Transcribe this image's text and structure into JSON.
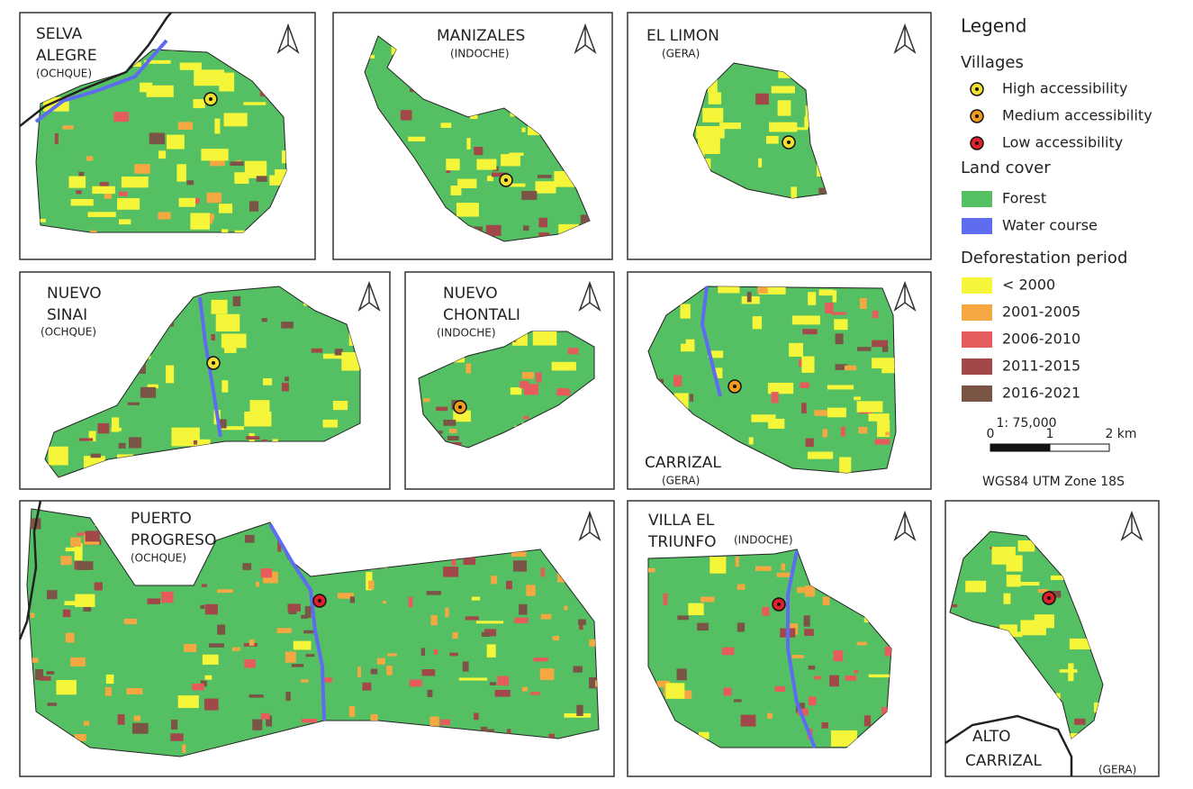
{
  "panels": [
    {
      "name": [
        "SELVA",
        "ALEGRE"
      ],
      "group": "(OCHQUE)"
    },
    {
      "name": [
        "MANIZALES"
      ],
      "group": "(INDOCHE)"
    },
    {
      "name": [
        "EL LIMON"
      ],
      "group": "(GERA)"
    },
    {
      "name": [
        "NUEVO",
        "SINAI"
      ],
      "group": "(OCHQUE)"
    },
    {
      "name": [
        "NUEVO",
        "CHONTALI"
      ],
      "group": "(INDOCHE)"
    },
    {
      "name": [
        "CARRIZAL"
      ],
      "group": "(GERA)"
    },
    {
      "name": [
        "PUERTO",
        "PROGRESO"
      ],
      "group": "(OCHQUE)"
    },
    {
      "name": [
        "VILLA EL",
        "TRIUNFO"
      ],
      "group": "(INDOCHE)"
    },
    {
      "name": [
        "ALTO",
        "CARRIZAL"
      ],
      "group": "(GERA)"
    }
  ],
  "legend": {
    "title": "Legend",
    "villages": {
      "title": "Villages",
      "items": [
        {
          "label": "High accessibility",
          "color": "#f2e030"
        },
        {
          "label": "Medium accessibility",
          "color": "#f29a1c"
        },
        {
          "label": "Low accessibility",
          "color": "#e0202a"
        }
      ]
    },
    "land_cover": {
      "title": "Land cover",
      "items": [
        {
          "label": "Forest",
          "color": "#55c063"
        },
        {
          "label": "Water course",
          "color": "#5d6cf0"
        }
      ]
    },
    "deforestation": {
      "title": "Deforestation period",
      "items": [
        {
          "label": "< 2000",
          "color": "#f5f53a"
        },
        {
          "label": "2001-2005",
          "color": "#f5a742"
        },
        {
          "label": "2006-2010",
          "color": "#e65c5c"
        },
        {
          "label": "2011-2015",
          "color": "#a24848"
        },
        {
          "label": "2016-2021",
          "color": "#7a5545"
        }
      ]
    }
  },
  "scale": {
    "ratio": "1: 75,000",
    "ticks": [
      "0",
      "1",
      "2 km"
    ],
    "crs": "WGS84 UTM Zone 18S"
  }
}
